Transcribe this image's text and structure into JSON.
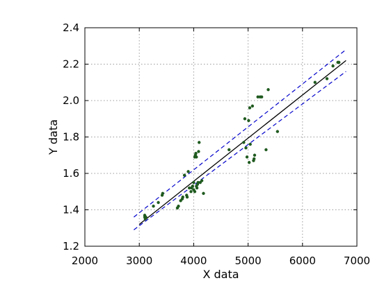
{
  "chart_data": {
    "type": "scatter",
    "xlabel": "X data",
    "ylabel": "Y data",
    "xlim": [
      2000,
      7000
    ],
    "ylim": [
      1.2,
      2.4
    ],
    "xticks": [
      2000,
      3000,
      4000,
      5000,
      6000,
      7000
    ],
    "yticks": [
      1.2,
      1.4,
      1.6,
      1.8,
      2.0,
      2.2,
      2.4
    ],
    "xtick_labels": [
      "2000",
      "3000",
      "4000",
      "5000",
      "6000",
      "7000"
    ],
    "ytick_labels": [
      "1.2",
      "1.4",
      "1.6",
      "1.8",
      "2.0",
      "2.2",
      "2.4"
    ],
    "grid": true,
    "colors": {
      "points": "#1f5a1f",
      "fit": "#000000",
      "band": "#0000cc"
    },
    "points": [
      [
        3100,
        1.37
      ],
      [
        3100,
        1.36
      ],
      [
        3120,
        1.36
      ],
      [
        3110,
        1.35
      ],
      [
        3260,
        1.42
      ],
      [
        3350,
        1.44
      ],
      [
        3420,
        1.48
      ],
      [
        3430,
        1.49
      ],
      [
        3700,
        1.41
      ],
      [
        3720,
        1.42
      ],
      [
        3760,
        1.45
      ],
      [
        3790,
        1.46
      ],
      [
        3800,
        1.47
      ],
      [
        3830,
        1.59
      ],
      [
        3870,
        1.48
      ],
      [
        3880,
        1.47
      ],
      [
        3900,
        1.61
      ],
      [
        3920,
        1.52
      ],
      [
        3950,
        1.5
      ],
      [
        3960,
        1.52
      ],
      [
        3980,
        1.53
      ],
      [
        4000,
        1.51
      ],
      [
        4000,
        1.55
      ],
      [
        4020,
        1.5
      ],
      [
        4020,
        1.69
      ],
      [
        4030,
        1.7
      ],
      [
        4040,
        1.71
      ],
      [
        4050,
        1.69
      ],
      [
        4050,
        1.53
      ],
      [
        4060,
        1.52
      ],
      [
        4070,
        1.54
      ],
      [
        4080,
        1.55
      ],
      [
        4090,
        1.72
      ],
      [
        4100,
        1.77
      ],
      [
        4120,
        1.55
      ],
      [
        4150,
        1.56
      ],
      [
        4180,
        1.49
      ],
      [
        4650,
        1.73
      ],
      [
        4920,
        1.77
      ],
      [
        4940,
        1.9
      ],
      [
        4960,
        1.74
      ],
      [
        4980,
        1.69
      ],
      [
        5010,
        1.89
      ],
      [
        5020,
        1.66
      ],
      [
        5030,
        1.96
      ],
      [
        5040,
        1.76
      ],
      [
        5080,
        1.97
      ],
      [
        5100,
        1.67
      ],
      [
        5110,
        1.68
      ],
      [
        5120,
        1.7
      ],
      [
        5180,
        2.02
      ],
      [
        5220,
        2.02
      ],
      [
        5250,
        2.02
      ],
      [
        5330,
        1.73
      ],
      [
        5370,
        2.06
      ],
      [
        5540,
        1.83
      ],
      [
        6230,
        2.1
      ],
      [
        6450,
        2.12
      ],
      [
        6560,
        2.19
      ],
      [
        6650,
        2.21
      ],
      [
        6670,
        2.21
      ]
    ],
    "fit_line": {
      "x": [
        3000,
        6800
      ],
      "y": [
        1.32,
        2.22
      ]
    },
    "band_upper": {
      "x": [
        2900,
        6800
      ],
      "y": [
        1.36,
        2.28
      ]
    },
    "band_lower": {
      "x": [
        2900,
        6800
      ],
      "y": [
        1.29,
        2.16
      ]
    }
  }
}
